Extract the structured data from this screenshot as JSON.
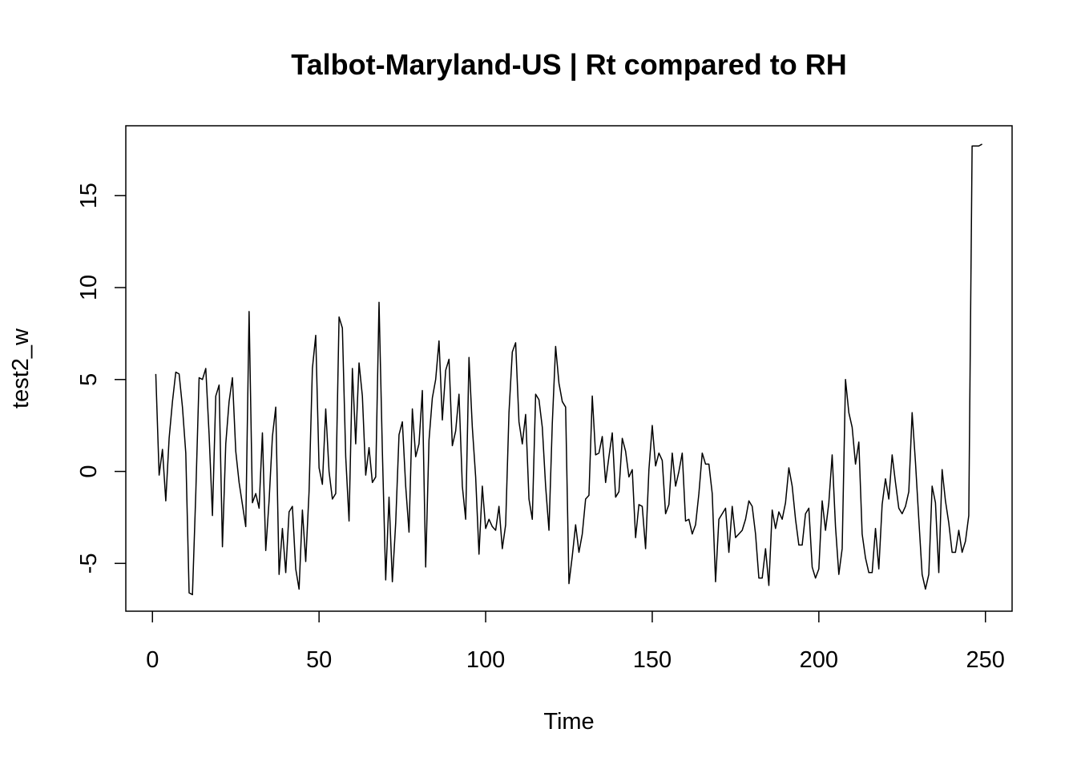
{
  "chart_data": {
    "type": "line",
    "title": "Talbot-Maryland-US | Rt compared to RH",
    "xlabel": "Time",
    "ylabel": "test2_w",
    "xlim": [
      -8,
      258
    ],
    "ylim": [
      -7.6,
      18.8
    ],
    "x_ticks": [
      0,
      50,
      100,
      150,
      200,
      250
    ],
    "y_ticks": [
      -5,
      0,
      5,
      10,
      15
    ],
    "grid": false,
    "legend": "none",
    "x_start": 1,
    "values": [
      5.3,
      -0.2,
      1.2,
      -1.6,
      1.8,
      3.8,
      5.4,
      5.3,
      3.5,
      1.0,
      -6.6,
      -6.7,
      -1.2,
      5.1,
      5.0,
      5.6,
      2.0,
      -2.4,
      4.1,
      4.7,
      -4.1,
      1.5,
      3.8,
      5.1,
      1.1,
      -0.6,
      -1.8,
      -3.0,
      8.7,
      -1.7,
      -1.2,
      -2.0,
      2.1,
      -4.3,
      -1.6,
      1.9,
      3.5,
      -5.6,
      -3.1,
      -5.5,
      -2.2,
      -1.9,
      -5.3,
      -6.4,
      -2.1,
      -4.9,
      -1.1,
      5.6,
      7.4,
      0.2,
      -0.7,
      3.4,
      0.0,
      -1.5,
      -1.2,
      8.4,
      7.8,
      0.8,
      -2.7,
      5.6,
      1.5,
      5.9,
      4.1,
      -0.2,
      1.3,
      -0.6,
      -0.3,
      9.2,
      1.1,
      -5.9,
      -1.4,
      -6.0,
      -2.8,
      2.0,
      2.7,
      -0.8,
      -3.3,
      3.4,
      0.8,
      1.5,
      4.4,
      -5.2,
      1.7,
      4.0,
      5.0,
      7.1,
      2.8,
      5.5,
      6.1,
      1.4,
      2.2,
      4.2,
      -0.8,
      -2.6,
      6.2,
      2.4,
      -0.3,
      -4.5,
      -0.8,
      -3.1,
      -2.6,
      -3.0,
      -3.2,
      -1.9,
      -4.2,
      -2.9,
      3.2,
      6.5,
      7.0,
      2.7,
      1.5,
      3.1,
      -1.5,
      -2.6,
      4.2,
      3.9,
      2.4,
      -0.8,
      -3.2,
      2.6,
      6.8,
      4.8,
      3.8,
      3.5,
      -6.1,
      -4.6,
      -2.9,
      -4.4,
      -3.4,
      -1.5,
      -1.3,
      4.1,
      0.9,
      1.0,
      1.9,
      -0.6,
      0.8,
      2.1,
      -1.4,
      -1.1,
      1.8,
      1.1,
      -0.3,
      0.1,
      -3.6,
      -1.8,
      -1.9,
      -4.2,
      0.1,
      2.5,
      0.3,
      1.0,
      0.6,
      -2.3,
      -1.8,
      1.0,
      -0.8,
      0.0,
      1.0,
      -2.7,
      -2.6,
      -3.4,
      -2.9,
      -1.2,
      1.0,
      0.4,
      0.4,
      -1.2,
      -6.0,
      -2.6,
      -2.3,
      -2.0,
      -4.4,
      -1.9,
      -3.6,
      -3.4,
      -3.2,
      -2.6,
      -1.6,
      -1.9,
      -3.4,
      -5.8,
      -5.8,
      -4.2,
      -6.2,
      -2.1,
      -3.1,
      -2.2,
      -2.6,
      -1.7,
      0.2,
      -0.8,
      -2.6,
      -4.0,
      -4.0,
      -2.3,
      -2.0,
      -5.2,
      -5.8,
      -5.3,
      -1.6,
      -3.2,
      -1.7,
      0.9,
      -3.0,
      -5.6,
      -4.2,
      5.0,
      3.2,
      2.4,
      0.4,
      1.6,
      -3.4,
      -4.7,
      -5.5,
      -5.5,
      -3.1,
      -5.3,
      -1.8,
      -0.4,
      -1.5,
      0.9,
      -0.6,
      -2.0,
      -2.3,
      -1.9,
      -1.1,
      3.2,
      0.5,
      -2.6,
      -5.6,
      -6.4,
      -5.6,
      -0.8,
      -1.7,
      -5.5,
      0.1,
      -1.6,
      -2.8,
      -4.4,
      -4.4,
      -3.2,
      -4.4,
      -3.8,
      -2.4,
      17.7,
      17.7,
      17.7,
      17.8
    ]
  }
}
